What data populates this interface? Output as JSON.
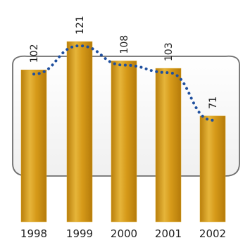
{
  "chart_data": {
    "type": "bar",
    "categories": [
      "1998",
      "1999",
      "2000",
      "2001",
      "2002"
    ],
    "values": [
      102,
      121,
      108,
      103,
      71
    ],
    "ylim": [
      0,
      130
    ],
    "grid": false,
    "overlay_line": {
      "style": "dotted",
      "color": "#1f4f9e"
    },
    "bar_color": "#d9a21f",
    "title": "",
    "xlabel": "",
    "ylabel": ""
  }
}
